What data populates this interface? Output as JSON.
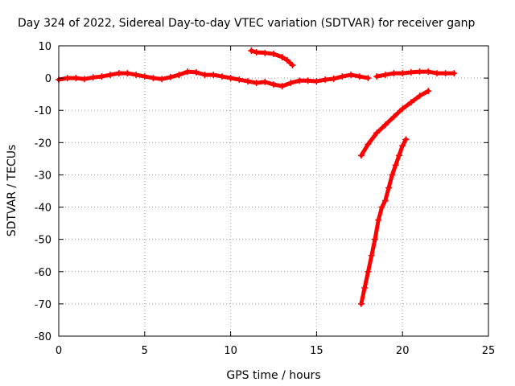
{
  "chart_data": {
    "type": "scatter",
    "title": "Day 324 of 2022, Sidereal Day-to-day VTEC variation (SDTVAR) for receiver ganp",
    "xlabel": "GPS time / hours",
    "ylabel": "SDTVAR / TECUs",
    "xlim": [
      0,
      25
    ],
    "ylim": [
      -80,
      10
    ],
    "xticks": [
      0,
      5,
      10,
      15,
      20,
      25
    ],
    "yticks": [
      -80,
      -70,
      -60,
      -50,
      -40,
      -30,
      -20,
      -10,
      0,
      10
    ],
    "grid": true,
    "marker": "plus",
    "color": "#ff0000",
    "series": [
      {
        "x": [
          0.0,
          0.5,
          1.0,
          1.5,
          2.0,
          2.5,
          3.0,
          3.5,
          4.0,
          4.5,
          5.0,
          5.5,
          6.0,
          6.5,
          7.0,
          7.5,
          8.0,
          8.5,
          9.0,
          9.5,
          10.0,
          10.5,
          11.0,
          11.5,
          12.0,
          12.5,
          13.0,
          13.5,
          14.0,
          14.5,
          15.0,
          15.5,
          16.0,
          16.5,
          17.0,
          17.5,
          18.0
        ],
        "y": [
          -0.5,
          0.0,
          0.0,
          -0.3,
          0.2,
          0.5,
          1.0,
          1.5,
          1.5,
          1.0,
          0.5,
          0.0,
          -0.3,
          0.3,
          1.0,
          2.0,
          1.8,
          1.0,
          1.0,
          0.5,
          0.0,
          -0.5,
          -1.0,
          -1.5,
          -1.2,
          -2.0,
          -2.5,
          -1.5,
          -0.8,
          -0.8,
          -1.0,
          -0.5,
          -0.2,
          0.5,
          1.0,
          0.5,
          0.0
        ]
      },
      {
        "x": [
          18.5,
          19.0,
          19.5,
          20.0,
          20.5,
          21.0,
          21.5,
          22.0,
          22.5,
          23.0
        ],
        "y": [
          0.5,
          1.0,
          1.5,
          1.5,
          1.8,
          2.0,
          2.0,
          1.5,
          1.5,
          1.5
        ]
      },
      {
        "x": [
          11.2,
          11.5,
          12.0,
          12.5,
          13.0,
          13.3,
          13.6
        ],
        "y": [
          8.5,
          8.0,
          7.8,
          7.5,
          6.5,
          5.5,
          4.0
        ]
      },
      {
        "x": [
          17.6,
          18.0,
          18.5,
          19.0,
          19.5,
          20.0,
          20.5,
          21.0,
          21.5
        ],
        "y": [
          -24.0,
          -20.5,
          -17.0,
          -14.5,
          -12.0,
          -9.5,
          -7.5,
          -5.5,
          -4.0
        ]
      },
      {
        "x": [
          17.6,
          17.8,
          18.0,
          18.2,
          18.4,
          18.6,
          18.8,
          19.0,
          19.2,
          19.4,
          19.6,
          19.8,
          20.0,
          20.2
        ],
        "y": [
          -70.0,
          -65.0,
          -60.0,
          -55.0,
          -50.0,
          -44.0,
          -40.0,
          -38.0,
          -34.0,
          -30.0,
          -27.0,
          -24.0,
          -21.0,
          -19.0
        ]
      }
    ]
  }
}
